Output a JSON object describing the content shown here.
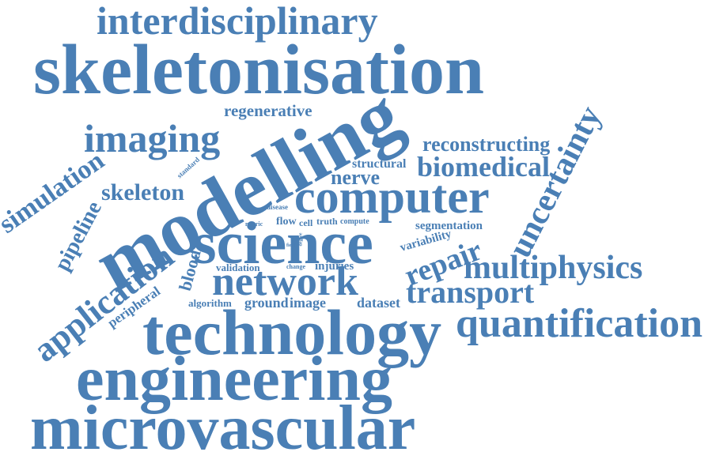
{
  "color": "#4a7fb5",
  "words": {
    "interdisciplinary": "interdisciplinary",
    "skeletonisation": "skeletonisation",
    "regenerative": "regenerative",
    "imaging": "imaging",
    "modelling": "modelling",
    "reconstructing": "reconstructing",
    "uncertainty": "uncertainty",
    "biomedical": "biomedical",
    "structural": "structural",
    "nerve": "nerve",
    "computer": "computer",
    "standard": "standard",
    "simulation": "simulation",
    "skeleton": "skeleton",
    "pipeline": "pipeline",
    "disease": "disease",
    "metric": "metric",
    "flow": "flow",
    "cell": "cell",
    "truth": "truth",
    "compute": "compute",
    "segmentation": "segmentation",
    "science": "science",
    "variability": "variability",
    "field": "field",
    "degree": "degree",
    "repair": "repair",
    "multiphysics": "multiphysics",
    "application": "application",
    "blood": "blood",
    "validation": "validation",
    "change": "change",
    "injuries": "injuries",
    "network": "network",
    "peripheral": "peripheral",
    "algorithm": "algorithm",
    "ground": "ground",
    "image": "image",
    "dataset": "dataset",
    "transport": "transport",
    "technology": "technology",
    "quantification": "quantification",
    "engineering": "engineering",
    "microvascular": "microvascular"
  }
}
